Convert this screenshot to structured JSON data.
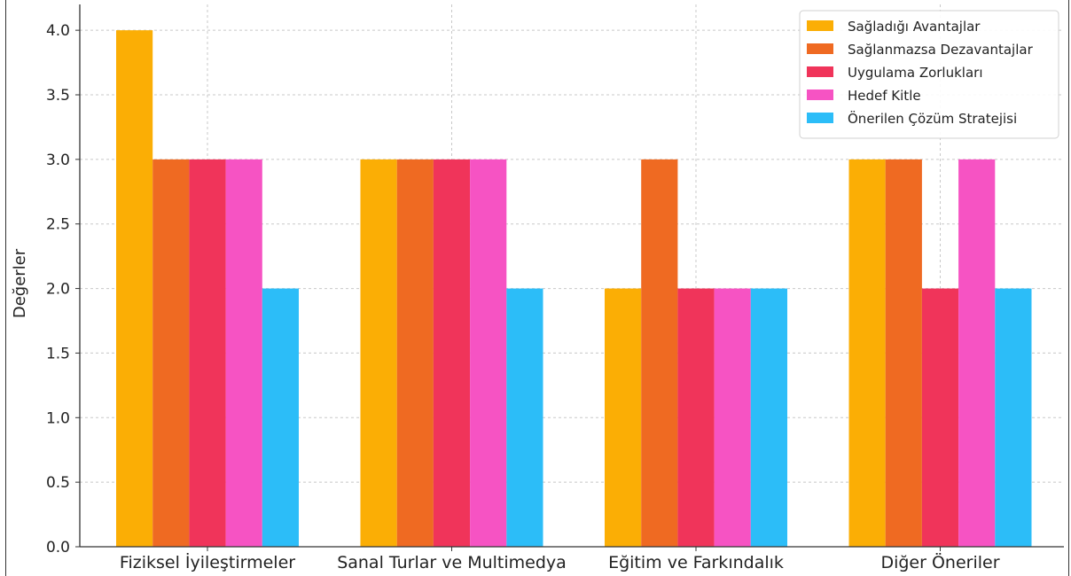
{
  "chart_data": {
    "type": "bar",
    "title": "",
    "xlabel": "",
    "ylabel": "Değerler",
    "ylim": [
      0,
      4.2
    ],
    "yticks": [
      "0.0",
      "0.5",
      "1.0",
      "1.5",
      "2.0",
      "2.5",
      "3.0",
      "3.5",
      "4.0"
    ],
    "grid": true,
    "legend_position": "top-right",
    "categories": [
      "Fiziksel İyileştirmeler",
      "Sanal Turlar ve Multimedya",
      "Eğitim ve Farkındalık",
      "Diğer Öneriler"
    ],
    "series": [
      {
        "name": "Sağladığı Avantajlar",
        "color": "#FBAE05",
        "values": [
          4,
          3,
          2,
          3
        ]
      },
      {
        "name": "Sağlanmazsa Dezavantajlar",
        "color": "#EF6A22",
        "values": [
          3,
          3,
          3,
          3
        ]
      },
      {
        "name": "Uygulama Zorlukları",
        "color": "#F0345A",
        "values": [
          3,
          3,
          2,
          2
        ]
      },
      {
        "name": "Hedef Kitle",
        "color": "#F653C3",
        "values": [
          3,
          3,
          2,
          3
        ]
      },
      {
        "name": "Önerilen Çözüm Stratejisi",
        "color": "#2CBDF8",
        "values": [
          2,
          2,
          2,
          2
        ]
      }
    ]
  }
}
